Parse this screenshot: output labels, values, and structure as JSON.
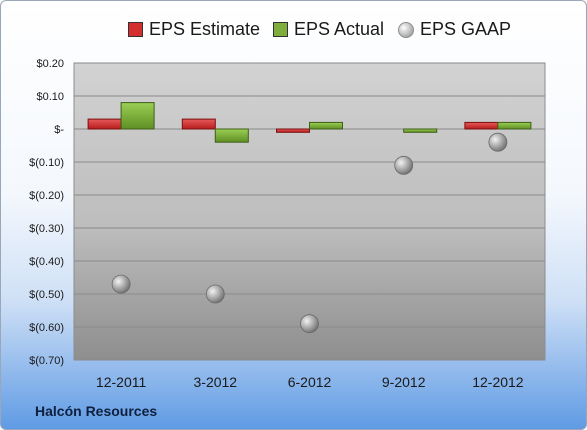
{
  "company": "Halcón Resources",
  "colors": {
    "estimate": "#d32f2f",
    "actual": "#7fae3c",
    "gaap": "#9e9e9e",
    "plot_bg": "#c6c6c6"
  },
  "legend": {
    "estimate": "EPS Estimate",
    "actual": "EPS Actual",
    "gaap": "EPS GAAP"
  },
  "chart_data": {
    "type": "bar",
    "categories": [
      "12-2011",
      "3-2012",
      "6-2012",
      "9-2012",
      "12-2012"
    ],
    "series": [
      {
        "name": "EPS Estimate",
        "type": "bar",
        "values": [
          0.03,
          0.03,
          -0.01,
          null,
          0.02
        ]
      },
      {
        "name": "EPS Actual",
        "type": "bar",
        "values": [
          0.08,
          -0.04,
          0.02,
          -0.01,
          0.02
        ]
      },
      {
        "name": "EPS GAAP",
        "type": "scatter",
        "values": [
          -0.47,
          -0.5,
          -0.59,
          -0.11,
          -0.04
        ]
      }
    ],
    "ylim": [
      -0.7,
      0.2
    ],
    "yticks": [
      0.2,
      0.1,
      0,
      -0.1,
      -0.2,
      -0.3,
      -0.4,
      -0.5,
      -0.6,
      -0.7
    ],
    "ytick_labels": [
      "$0.20",
      "$0.10",
      "$-",
      "$(0.10)",
      "$(0.20)",
      "$(0.30)",
      "$(0.40)",
      "$(0.50)",
      "$(0.60)",
      "$(0.70)"
    ],
    "grid": true,
    "legend_position": "top"
  }
}
